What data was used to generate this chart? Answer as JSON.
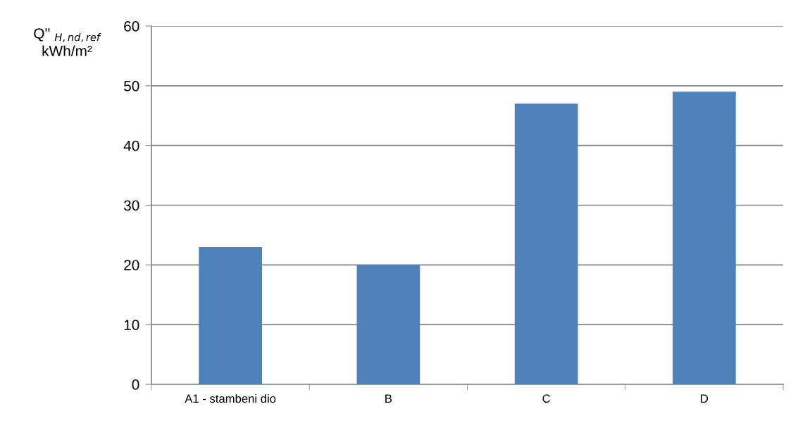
{
  "chart_data": {
    "type": "bar",
    "ylabel": "Q'' $_{H,nd,ref}$\nkWh/m²",
    "categories": [
      "A1 - stambeni dio",
      "B",
      "C",
      "D"
    ],
    "values": [
      23,
      20,
      47,
      49
    ],
    "color": "#4f81bd",
    "ylim": [
      0,
      60
    ],
    "yticks": [
      0,
      10,
      20,
      30,
      40,
      50,
      60
    ],
    "grid": "y",
    "legend": false
  }
}
